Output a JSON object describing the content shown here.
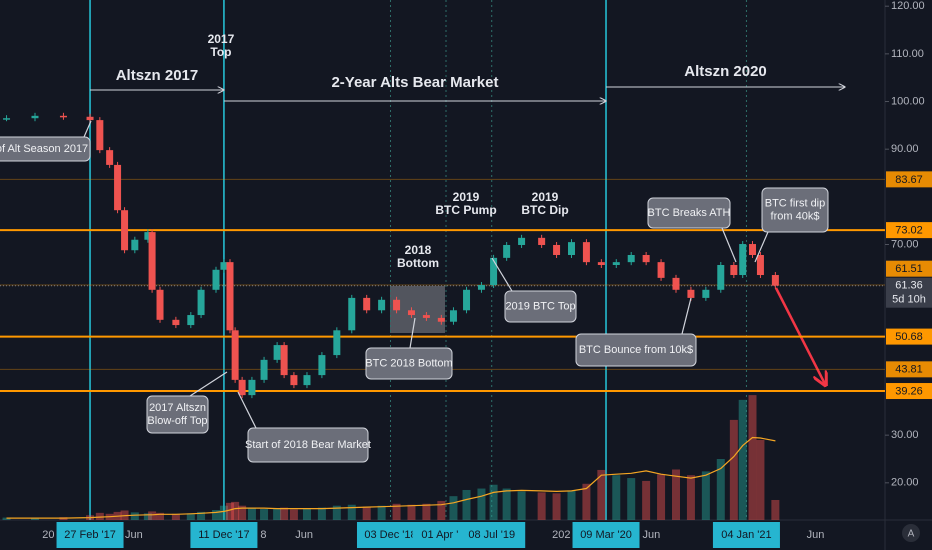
{
  "chart_data": {
    "type": "candlestick",
    "x": [
      "2016-09-01",
      "2016-11-01",
      "2017-01-01",
      "2017-02-27",
      "2017-03-20",
      "2017-04-10",
      "2017-04-27",
      "2017-05-12",
      "2017-06-03",
      "2017-07-01",
      "2017-07-10",
      "2017-07-27",
      "2017-08-30",
      "2017-10-01",
      "2017-10-23",
      "2017-11-24",
      "2017-12-11",
      "2017-12-24",
      "2018-01-04",
      "2018-01-19",
      "2018-02-09",
      "2018-03-07",
      "2018-04-04",
      "2018-04-19",
      "2018-05-10",
      "2018-06-07",
      "2018-07-09",
      "2018-08-10",
      "2018-09-11",
      "2018-10-13",
      "2018-11-14",
      "2018-12-16",
      "2019-01-17",
      "2019-02-18",
      "2019-03-22",
      "2019-04-17",
      "2019-05-15",
      "2019-06-16",
      "2019-07-12",
      "2019-08-09",
      "2019-09-10",
      "2019-10-23",
      "2019-11-24",
      "2019-12-26",
      "2020-01-27",
      "2020-02-28",
      "2020-03-31",
      "2020-05-02",
      "2020-06-03",
      "2020-07-05",
      "2020-08-06",
      "2020-09-07",
      "2020-10-09",
      "2020-11-10",
      "2020-12-08",
      "2020-12-27",
      "2021-01-17",
      "2021-02-03",
      "2021-03-07"
    ],
    "values": [
      96.5,
      97.0,
      96.8,
      96.1,
      89.8,
      86.7,
      77.2,
      68.8,
      71,
      72.6,
      60.5,
      54.2,
      53.1,
      55.2,
      60.5,
      64.7,
      66.3,
      52,
      41.6,
      38.4,
      41.6,
      45.8,
      48.9,
      42.6,
      40.5,
      42.6,
      46.8,
      52,
      58.8,
      56.2,
      58.4,
      56.2,
      55.2,
      54.6,
      53.8,
      56.2,
      60.5,
      61.5,
      67.2,
      69.9,
      71.4,
      69.9,
      67.8,
      70.5,
      66.3,
      65.7,
      66.3,
      67.8,
      66.3,
      63,
      60.5,
      58.8,
      60.5,
      65.7,
      63.6,
      70.1,
      67.8,
      63.6,
      61.36
    ],
    "volume": [
      12.7,
      12.7,
      12.8,
      13.2,
      13.7,
      13.5,
      13.9,
      14.2,
      13.8,
      13.6,
      14.0,
      13.7,
      13.5,
      13.6,
      13.9,
      14.3,
      15.2,
      15.8,
      16.0,
      15.2,
      14.8,
      14.5,
      14.6,
      14.8,
      14.4,
      14.6,
      14.8,
      15.2,
      15.4,
      15.0,
      15.2,
      15.6,
      15.4,
      15.6,
      16.2,
      17.2,
      18.5,
      18.8,
      19.6,
      18.8,
      18.2,
      18.0,
      17.8,
      18.4,
      19.8,
      22.7,
      21.6,
      21.0,
      20.4,
      21.8,
      22.8,
      21.6,
      22.4,
      25,
      33.2,
      37.4,
      38.4,
      29,
      16.4
    ],
    "volume_ma": [
      12.6,
      12.6,
      12.6,
      12.7,
      12.8,
      12.9,
      13.0,
      13.1,
      13.2,
      13.3,
      13.3,
      13.4,
      13.4,
      13.5,
      13.6,
      13.8,
      14.0,
      14.3,
      14.6,
      14.7,
      14.7,
      14.7,
      14.6,
      14.6,
      14.6,
      14.6,
      14.6,
      14.7,
      14.8,
      14.9,
      15.0,
      15.1,
      15.2,
      15.3,
      15.4,
      15.8,
      16.5,
      17.2,
      18.0,
      18.3,
      18.4,
      18.3,
      18.2,
      18.3,
      18.8,
      21.6,
      21.8,
      22.0,
      22.5,
      21.8,
      21.4,
      21.0,
      21.6,
      23,
      25.5,
      27.8,
      29.5,
      29.4,
      28.8
    ],
    "up_color": "#26a69a",
    "down_color": "#ef5350",
    "volume_ma_color": "#f5a623",
    "ylim": [
      12.2,
      121.3
    ],
    "yticks": [
      {
        "value": 120,
        "label": "120.00"
      },
      {
        "value": 110,
        "label": "110.00"
      },
      {
        "value": 100,
        "label": "100.00"
      },
      {
        "value": 90,
        "label": "90.00"
      },
      {
        "value": 70,
        "label": "70.00"
      },
      {
        "value": 30,
        "label": "30.00"
      },
      {
        "value": 20,
        "label": "20.00"
      }
    ],
    "xlim": [
      "2016-08-18",
      "2021-10-28"
    ],
    "xticks": [
      {
        "value": "2017-01-01",
        "label": "20"
      },
      {
        "value": "2017-02-27",
        "label": "27 Feb '17",
        "highlight": true
      },
      {
        "value": "2017-06-01",
        "label": "Jun"
      },
      {
        "value": "2017-12-11",
        "label": "11 Dec '17",
        "highlight": true
      },
      {
        "value": "2018-01-01",
        "label": "8"
      },
      {
        "value": "2018-06-01",
        "label": "Jun"
      },
      {
        "value": "2018-12-03",
        "label": "03 Dec '18",
        "highlight": true
      },
      {
        "value": "2019-04-01",
        "label": "01 Apr '19",
        "highlight": true
      },
      {
        "value": "2019-07-08",
        "label": "08 Jul '19",
        "highlight": true
      },
      {
        "value": "2020-01-01",
        "label": "202"
      },
      {
        "value": "2020-03-09",
        "label": "09 Mar '20",
        "highlight": true
      },
      {
        "value": "2020-06-01",
        "label": "Jun"
      },
      {
        "value": "2021-01-04",
        "label": "04 Jan '21",
        "highlight": true
      },
      {
        "value": "2021-06-01",
        "label": "Jun"
      }
    ],
    "vlines": [
      "2017-02-27",
      "2017-12-11",
      "2020-03-09"
    ],
    "vline_color": "#26c6da",
    "levels": [
      73.02,
      50.68,
      39.26
    ],
    "minor_levels": [
      83.67,
      61.51,
      43.81
    ],
    "level_color": "#ff9800",
    "last_price": 61.36,
    "countdown": "5d 10h",
    "periods": [
      "Altszn 2017",
      "2-Year Alts Bear Market",
      "Altszn 2020"
    ],
    "notes": [
      [
        "2017",
        "Top"
      ],
      [
        "2018",
        "Bottom"
      ],
      [
        "2019",
        "BTC Pump"
      ],
      [
        "2019",
        "BTC Dip"
      ]
    ],
    "callouts": [
      [
        "of Alt Season 2017"
      ],
      [
        "2017 Altszn",
        "Blow-off Top"
      ],
      [
        "Start of 2018 Bear Market"
      ],
      [
        "BTC 2018 Bottom"
      ],
      [
        "2019 BTC Top"
      ],
      [
        "BTC Breaks ATH"
      ],
      [
        "BTC first dip",
        "from 40k$"
      ],
      [
        "BTC Bounce from 10k$"
      ]
    ],
    "axis_button": "A"
  }
}
